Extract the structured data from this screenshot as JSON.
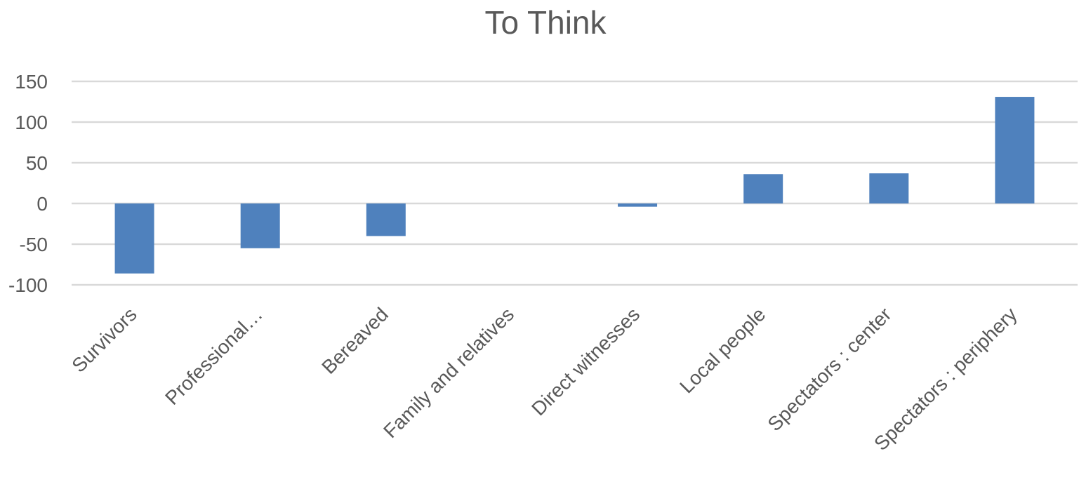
{
  "chart_data": {
    "type": "bar",
    "title": "To Think",
    "xlabel": "",
    "ylabel": "",
    "categories": [
      "Survivors",
      "Professional…",
      "Bereaved",
      "Family and relatives",
      "Direct witnesses",
      "Local people",
      "Spectators : center",
      "Spectators : periphery"
    ],
    "values": [
      -86,
      -55,
      -40,
      0,
      -4,
      36,
      37,
      131
    ],
    "ylim": [
      -100,
      150
    ],
    "yticks": [
      150,
      100,
      50,
      0,
      -50,
      -100
    ],
    "grid": true,
    "legend": "none",
    "bar_color": "#4f81bd"
  }
}
